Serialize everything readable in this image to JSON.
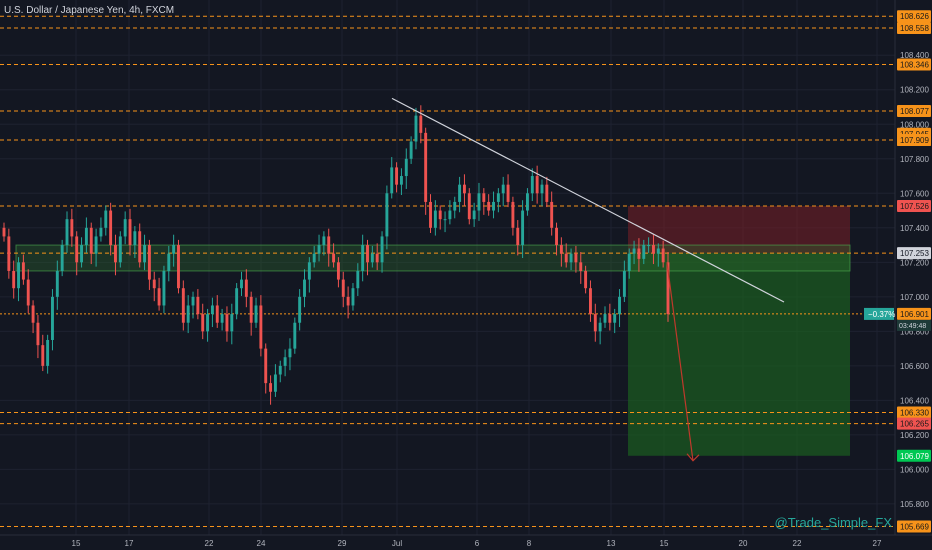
{
  "header": {
    "symbol_title": "U.S. Dollar / Japanese Yen, 4h, FXCM"
  },
  "watermark": "@Trade_Simple_FX",
  "colors": {
    "background": "#131722",
    "grid": "#1e2230",
    "up": "#26a69a",
    "down": "#ef5350",
    "level_line": "#f7931a",
    "level_badge": "#f7931a",
    "stop_zone": "#7a1f27",
    "target_zone": "#1b5e20",
    "sr_zone": "#2e6b2e",
    "trendline": "#d1d4dc",
    "arrow": "#c0392b",
    "axis_text": "#b2b5be",
    "current_price": "#26a69a",
    "target_price": "#00c853"
  },
  "chart_data": {
    "type": "candlestick",
    "title": "U.S. Dollar / Japanese Yen, 4h, FXCM",
    "ylim": [
      105.62,
      108.72
    ],
    "y_ticks": [
      "108.400",
      "108.200",
      "108.000",
      "107.800",
      "107.600",
      "107.400",
      "107.200",
      "107.000",
      "106.800",
      "106.600",
      "106.400",
      "106.200",
      "106.000",
      "105.800"
    ],
    "x_ticks": [
      "15",
      "17",
      "22",
      "24",
      "29",
      "Jul",
      "6",
      "8",
      "13",
      "15",
      "20",
      "22",
      "27"
    ],
    "horizontal_levels": [
      {
        "label": "108.626",
        "value": 108.626
      },
      {
        "label": "108.558",
        "value": 108.558
      },
      {
        "label": "108.346",
        "value": 108.346
      },
      {
        "label": "108.077",
        "value": 108.077
      },
      {
        "label": "107.909",
        "value": 107.909
      },
      {
        "label": "107.526",
        "value": 107.526
      },
      {
        "label": "106.330",
        "value": 106.33
      },
      {
        "label": "106.265",
        "value": 106.265
      },
      {
        "label": "105.669",
        "value": 105.669
      }
    ],
    "partial_level_label": "107.945",
    "entry_price": {
      "label": "107.253",
      "value": 107.253
    },
    "current_price": {
      "label": "106.901",
      "value": 106.901,
      "change": "−0.37%",
      "countdown": "03:49:48"
    },
    "target_price": {
      "label": "106.079",
      "value": 106.079
    },
    "stop_price": 107.526,
    "sr_zone": {
      "low": 107.15,
      "high": 107.3
    },
    "trendline": {
      "start_price": 108.15,
      "end_price": 106.97
    },
    "closes": [
      107.35,
      107.15,
      107.05,
      107.2,
      107.1,
      106.95,
      106.85,
      106.72,
      106.6,
      106.75,
      107.0,
      107.15,
      107.3,
      107.45,
      107.35,
      107.2,
      107.3,
      107.4,
      107.25,
      107.35,
      107.4,
      107.5,
      107.3,
      107.2,
      107.35,
      107.45,
      107.3,
      107.38,
      107.2,
      107.3,
      107.1,
      107.05,
      106.95,
      107.15,
      107.25,
      107.3,
      107.05,
      106.85,
      106.95,
      107.0,
      106.9,
      106.8,
      106.9,
      106.95,
      106.85,
      106.9,
      106.8,
      106.9,
      107.05,
      107.1,
      107.0,
      106.85,
      106.95,
      106.7,
      106.5,
      106.45,
      106.55,
      106.6,
      106.65,
      106.7,
      106.85,
      107.0,
      107.1,
      107.2,
      107.25,
      107.3,
      107.35,
      107.25,
      107.2,
      107.1,
      107.0,
      106.95,
      107.05,
      107.15,
      107.3,
      107.2,
      107.25,
      107.2,
      107.35,
      107.6,
      107.75,
      107.65,
      107.7,
      107.8,
      107.9,
      108.05,
      107.95,
      107.55,
      107.4,
      107.5,
      107.45,
      107.45,
      107.5,
      107.55,
      107.65,
      107.6,
      107.45,
      107.5,
      107.6,
      107.55,
      107.5,
      107.55,
      107.6,
      107.65,
      107.55,
      107.4,
      107.3,
      107.5,
      107.6,
      107.7,
      107.6,
      107.65,
      107.55,
      107.4,
      107.3,
      107.25,
      107.2,
      107.25,
      107.2,
      107.15,
      107.05,
      106.9,
      106.8,
      106.85,
      106.9,
      106.85,
      106.9,
      107.0,
      107.15,
      107.25,
      107.28,
      107.22,
      107.3,
      107.3,
      107.25,
      107.28,
      107.2,
      106.9
    ]
  }
}
